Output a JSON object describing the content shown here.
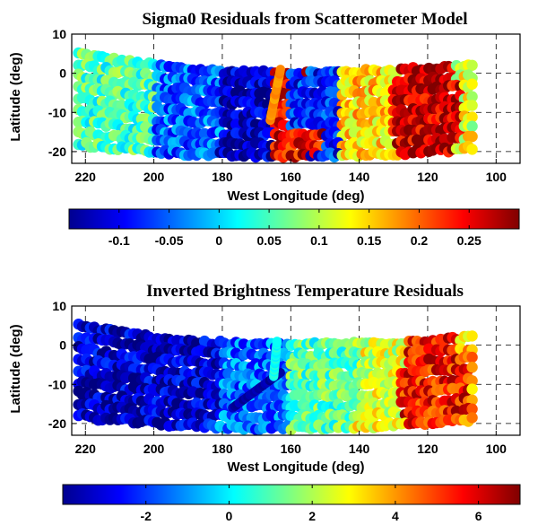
{
  "chart_data": [
    {
      "type": "scatter",
      "title": "Sigma0 Residuals from Scatterometer Model",
      "xlabel": "West Longitude (deg)",
      "ylabel": "Latitude (deg)",
      "xlim": [
        224,
        93
      ],
      "ylim": [
        -23,
        10
      ],
      "x_ticks": [
        220,
        200,
        180,
        160,
        140,
        120,
        100
      ],
      "y_ticks": [
        10,
        0,
        -10,
        -20
      ],
      "grid": true,
      "colorbar": {
        "orientation": "horizontal",
        "colormap": "jet",
        "range": [
          -0.15,
          0.3
        ],
        "ticks": [
          -0.1,
          -0.05,
          0,
          0.05,
          0.1,
          0.15,
          0.2,
          0.25
        ],
        "tick_labels": [
          "-0.1",
          "-0.05",
          "0",
          "0.05",
          "0.1",
          "0.15",
          "0.2",
          "0.25"
        ]
      },
      "swath": {
        "left_lon": 222,
        "right_lon": 106,
        "top_edge_lat": {
          "at_left": 5,
          "at_center": 0,
          "at_right": 2
        },
        "bottom_edge_lat": {
          "at_left": -18,
          "at_center": -21,
          "at_right": -19
        }
      },
      "regions": [
        {
          "lon": [
            222,
            200
          ],
          "lat": [
            -20,
            5
          ],
          "value": 0.05
        },
        {
          "lon": [
            200,
            180
          ],
          "lat": [
            -20,
            2
          ],
          "value": -0.05
        },
        {
          "lon": [
            180,
            165
          ],
          "lat": [
            -15,
            0
          ],
          "value": -0.12
        },
        {
          "lon": [
            165,
            150
          ],
          "lat": [
            -21,
            -14
          ],
          "value": 0.25
        },
        {
          "lon": [
            160,
            145
          ],
          "lat": [
            -14,
            0
          ],
          "value": -0.08
        },
        {
          "lon": [
            145,
            130
          ],
          "lat": [
            -20,
            0
          ],
          "value": 0.15
        },
        {
          "lon": [
            130,
            110
          ],
          "lat": [
            -18,
            -2
          ],
          "value": 0.27
        },
        {
          "lon": [
            110,
            100
          ],
          "lat": [
            -20,
            2
          ],
          "value": 0.12
        }
      ],
      "features": [
        {
          "kind": "crossing_track",
          "lon_range": [
            166,
            163
          ],
          "lat_range": [
            -12,
            1
          ],
          "value": 0.18
        }
      ]
    },
    {
      "type": "scatter",
      "title": "Inverted Brightness Temperature Residuals",
      "xlabel": "West Longitude (deg)",
      "ylabel": "Latitude (deg)",
      "xlim": [
        224,
        93
      ],
      "ylim": [
        -23,
        10
      ],
      "x_ticks": [
        220,
        200,
        180,
        160,
        140,
        120,
        100
      ],
      "y_ticks": [
        10,
        0,
        -10,
        -20
      ],
      "grid": true,
      "colorbar": {
        "orientation": "horizontal",
        "colormap": "jet",
        "range": [
          -4,
          7
        ],
        "ticks": [
          -2,
          0,
          2,
          4,
          6
        ],
        "tick_labels": [
          "-2",
          "0",
          "2",
          "4",
          "6"
        ]
      },
      "swath": {
        "left_lon": 222,
        "right_lon": 106,
        "top_edge_lat": {
          "at_left": 5,
          "at_center": 0,
          "at_right": 2
        },
        "bottom_edge_lat": {
          "at_left": -18,
          "at_center": -21,
          "at_right": -19
        }
      },
      "regions": [
        {
          "lon": [
            222,
            180
          ],
          "lat": [
            -20,
            5
          ],
          "value": -3.2
        },
        {
          "lon": [
            180,
            160
          ],
          "lat": [
            -20,
            0
          ],
          "value": -1.5
        },
        {
          "lon": [
            160,
            140
          ],
          "lat": [
            -20,
            0
          ],
          "value": 1.0
        },
        {
          "lon": [
            140,
            128
          ],
          "lat": [
            -20,
            0
          ],
          "value": 2.5
        },
        {
          "lon": [
            128,
            108
          ],
          "lat": [
            -18,
            -5
          ],
          "value": 5.5
        },
        {
          "lon": [
            108,
            100
          ],
          "lat": [
            -20,
            2
          ],
          "value": 3.5
        }
      ],
      "features": [
        {
          "kind": "crossing_track",
          "lon_range": [
            177,
            163
          ],
          "lat_range": [
            -16,
            -7
          ],
          "value": -3.6
        },
        {
          "kind": "crossing_track",
          "lon_range": [
            165,
            164
          ],
          "lat_range": [
            -8,
            1
          ],
          "value": 0.3
        }
      ]
    }
  ]
}
